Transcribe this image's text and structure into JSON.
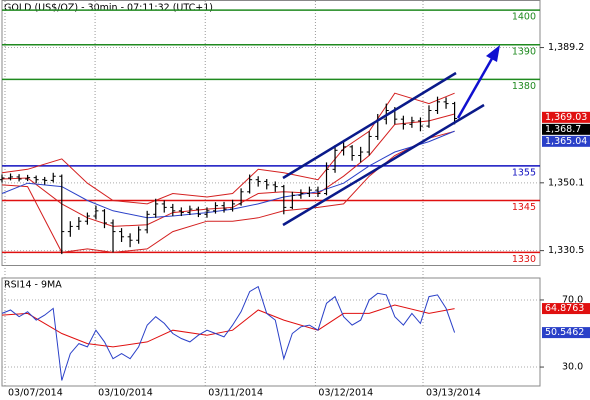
{
  "chart_data": [
    {
      "type": "ohlc",
      "title": "GOLD (US$/OZ) - 30min - 07:11:32 (UTC+1)",
      "xlim": [
        0,
        63
      ],
      "xticks": [
        {
          "value": 0.35,
          "label": "03/07/2014"
        },
        {
          "value": 10.9,
          "label": "03/10/2014"
        },
        {
          "value": 23.8,
          "label": "03/11/2014"
        },
        {
          "value": 36.7,
          "label": "03/12/2014"
        },
        {
          "value": 49.3,
          "label": "03/13/2014"
        }
      ],
      "ylim": [
        1326.2,
        1402.8
      ],
      "yticks": [
        {
          "value": 1389.2,
          "label": "1,389.2"
        },
        {
          "value": 1350.1,
          "label": "1,350.1"
        },
        {
          "value": 1330.5,
          "label": "1,330.5"
        }
      ],
      "grid": true,
      "color": "#000000",
      "x": [
        0,
        1,
        2,
        3,
        4,
        5,
        6,
        7,
        8,
        9,
        10,
        11,
        12,
        13,
        14,
        15,
        16,
        17,
        18,
        19,
        20,
        21,
        22,
        23,
        24,
        25,
        26,
        27,
        28,
        29,
        30,
        31,
        32,
        33,
        34,
        35,
        36,
        37,
        38,
        39,
        40,
        41,
        42,
        43,
        44,
        45,
        46,
        47,
        48,
        49,
        50,
        51,
        52,
        53
      ],
      "open": [
        1351.0,
        1351.5,
        1351.8,
        1351.2,
        1351.6,
        1351.0,
        1350.8,
        1352.0,
        1336.0,
        1337.5,
        1339.0,
        1340.5,
        1342.0,
        1338.5,
        1336.0,
        1334.5,
        1333.5,
        1336.5,
        1341.0,
        1344.0,
        1343.0,
        1342.0,
        1341.5,
        1342.5,
        1341.0,
        1342.0,
        1343.5,
        1342.5,
        1344.0,
        1347.5,
        1351.0,
        1350.5,
        1349.5,
        1349.0,
        1343.0,
        1346.5,
        1347.0,
        1348.0,
        1347.0,
        1354.0,
        1359.5,
        1360.5,
        1358.0,
        1359.0,
        1363.5,
        1368.5,
        1371.0,
        1368.5,
        1367.0,
        1368.0,
        1366.5,
        1371.0,
        1373.5,
        1373.0
      ],
      "high": [
        1352.5,
        1352.8,
        1352.6,
        1352.4,
        1352.2,
        1351.8,
        1353.0,
        1352.5,
        1339.0,
        1340.2,
        1341.5,
        1343.5,
        1342.5,
        1339.5,
        1337.0,
        1335.5,
        1337.5,
        1342.0,
        1345.5,
        1345.0,
        1344.0,
        1343.0,
        1343.5,
        1343.2,
        1343.0,
        1344.5,
        1344.6,
        1345.2,
        1348.5,
        1352.5,
        1352.0,
        1351.2,
        1350.5,
        1349.5,
        1347.5,
        1348.2,
        1349.0,
        1349.0,
        1356.0,
        1361.0,
        1362.5,
        1361.0,
        1360.5,
        1365.0,
        1370.0,
        1373.0,
        1372.0,
        1369.5,
        1369.2,
        1369.0,
        1372.5,
        1375.0,
        1374.8,
        1373.5
      ],
      "low": [
        1350.2,
        1350.8,
        1350.5,
        1350.6,
        1350.0,
        1349.6,
        1350.2,
        1329.5,
        1334.5,
        1336.5,
        1338.0,
        1339.5,
        1337.0,
        1330.0,
        1333.0,
        1331.5,
        1332.5,
        1335.5,
        1340.0,
        1341.5,
        1340.5,
        1340.5,
        1340.8,
        1340.2,
        1340.0,
        1341.2,
        1341.5,
        1341.8,
        1343.5,
        1347.0,
        1349.0,
        1348.2,
        1347.5,
        1341.0,
        1342.5,
        1345.5,
        1346.0,
        1346.0,
        1346.5,
        1353.0,
        1358.0,
        1356.5,
        1356.0,
        1358.0,
        1362.5,
        1367.0,
        1367.0,
        1365.5,
        1366.0,
        1365.0,
        1366.0,
        1370.0,
        1371.5,
        1367.0
      ],
      "close": [
        1351.5,
        1351.8,
        1351.2,
        1351.6,
        1351.0,
        1350.8,
        1352.0,
        1336.0,
        1337.5,
        1339.0,
        1340.5,
        1342.0,
        1338.5,
        1336.0,
        1334.5,
        1333.5,
        1336.5,
        1341.0,
        1344.0,
        1343.0,
        1342.0,
        1341.5,
        1342.5,
        1341.0,
        1342.0,
        1343.5,
        1342.5,
        1344.0,
        1347.5,
        1351.0,
        1350.5,
        1349.5,
        1349.0,
        1343.0,
        1346.5,
        1347.0,
        1348.0,
        1347.0,
        1354.0,
        1359.5,
        1360.5,
        1358.0,
        1359.0,
        1363.5,
        1368.5,
        1371.0,
        1368.5,
        1367.0,
        1368.0,
        1366.5,
        1371.0,
        1373.5,
        1373.0,
        1368.7
      ],
      "indicator_x": [
        0,
        3,
        7,
        10,
        13,
        17,
        20,
        24,
        27,
        30,
        33,
        37,
        40,
        43,
        46,
        50,
        53
      ],
      "indicators": [
        {
          "color": "#d42020",
          "values": [
            1353,
            1354,
            1357,
            1350,
            1345,
            1344,
            1347,
            1346,
            1347,
            1354,
            1353,
            1351,
            1360,
            1365,
            1376,
            1373,
            1376
          ]
        },
        {
          "color": "#d42020",
          "values": [
            1349.5,
            1349,
            1330,
            1331,
            1330,
            1331,
            1336,
            1339,
            1339,
            1340,
            1342,
            1343,
            1344,
            1352,
            1358,
            1363,
            1365
          ]
        },
        {
          "color": "#d42020",
          "values": [
            1351.2,
            1351.5,
            1344,
            1340,
            1337.5,
            1338,
            1341.5,
            1342.5,
            1343,
            1347,
            1347.5,
            1347,
            1352,
            1358,
            1367,
            1368,
            1370
          ]
        },
        {
          "color": "#2a40c8",
          "values": [
            1347,
            1350,
            1349,
            1345,
            1342,
            1340,
            1340.5,
            1341.5,
            1342.5,
            1344,
            1346,
            1347.5,
            1350,
            1355,
            1359,
            1362,
            1365.04
          ]
        }
      ],
      "levels": [
        {
          "value": 1400,
          "color": "#1f8a1f"
        },
        {
          "value": 1390,
          "color": "#1f8a1f"
        },
        {
          "value": 1380,
          "color": "#1f8a1f"
        },
        {
          "value": 1355,
          "color": "#1010c0"
        },
        {
          "value": 1345,
          "color": "#e01010"
        },
        {
          "value": 1330,
          "color": "#e01010"
        }
      ],
      "price_labels": [
        {
          "value": 1369.03,
          "label": "1,369.03",
          "color": "#e01010"
        },
        {
          "value": 1368.7,
          "label": "1,368.7",
          "color": "#000000"
        },
        {
          "value": 1365.04,
          "label": "1,365.04",
          "color": "#2a40c8"
        }
      ]
    },
    {
      "type": "line",
      "title": "RSI14 - 9MA",
      "xlim": [
        0,
        63
      ],
      "ylim": [
        19.3,
        83.1
      ],
      "yticks": [
        {
          "value": 70,
          "label": "70.0"
        },
        {
          "value": 30,
          "label": "30.0"
        }
      ],
      "x": [
        0,
        1,
        2,
        3,
        4,
        5,
        6,
        7,
        8,
        9,
        10,
        11,
        12,
        13,
        14,
        15,
        16,
        17,
        18,
        19,
        20,
        21,
        22,
        23,
        24,
        25,
        26,
        27,
        28,
        29,
        30,
        31,
        32,
        33,
        34,
        35,
        36,
        37,
        38,
        39,
        40,
        41,
        42,
        43,
        44,
        45,
        46,
        47,
        48,
        49,
        50,
        51,
        52,
        53
      ],
      "series": [
        {
          "color": "#2a40c8",
          "values": [
            62,
            64,
            60,
            63,
            58,
            61,
            65,
            22,
            38,
            44,
            42,
            52,
            45,
            35,
            38,
            35,
            42,
            55,
            60,
            56,
            50,
            47,
            45,
            49,
            52,
            50,
            48,
            55,
            63,
            75,
            78,
            62,
            58,
            35,
            50,
            54,
            55,
            52,
            68,
            72,
            60,
            55,
            58,
            70,
            74,
            73,
            60,
            55,
            62,
            56,
            72,
            73,
            65,
            50.5462
          ]
        }
      ],
      "ma_x": [
        0,
        3,
        7,
        10,
        13,
        17,
        20,
        24,
        27,
        30,
        33,
        37,
        40,
        43,
        46,
        50,
        53
      ],
      "ma": {
        "color": "#e01010",
        "values": [
          61,
          62,
          50,
          44,
          42,
          45,
          52,
          49,
          52,
          64,
          58,
          52,
          62,
          62,
          67,
          62,
          64.8763
        ]
      },
      "value_boxes": [
        {
          "value": 64.8763,
          "color": "#e01010"
        },
        {
          "value": 50.5462,
          "color": "#2a40c8"
        }
      ]
    }
  ]
}
